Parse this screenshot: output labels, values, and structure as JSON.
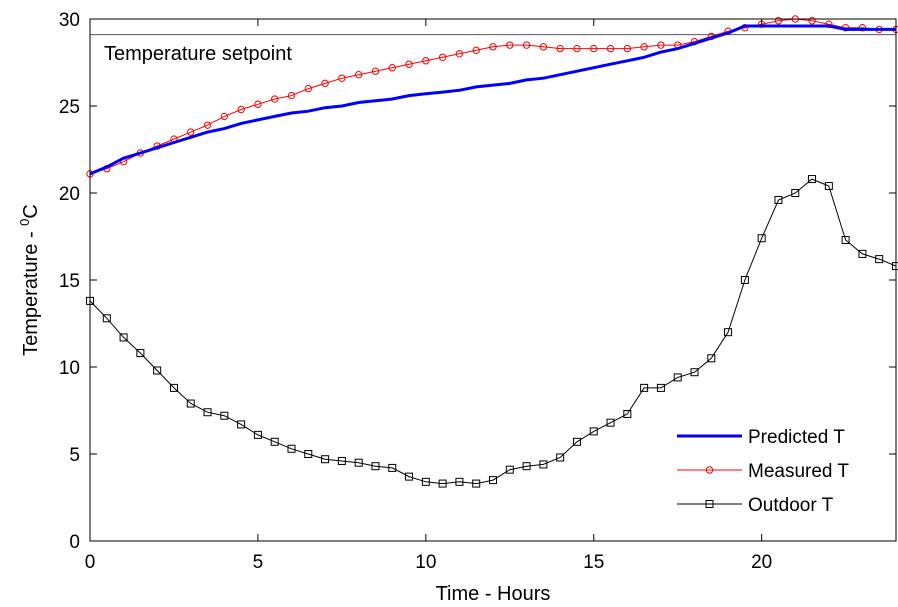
{
  "chart_data": {
    "type": "line",
    "title": "",
    "xlabel": "Time - Hours",
    "ylabel_main": "Temperature - ",
    "ylabel_sup": "0",
    "ylabel_unit": "C",
    "xlim": [
      0,
      24
    ],
    "ylim": [
      0,
      30
    ],
    "xticks": [
      0,
      5,
      10,
      15,
      20
    ],
    "yticks": [
      0,
      5,
      10,
      15,
      20,
      25,
      30
    ],
    "grid": false,
    "legend_position": "bottom-right",
    "setpoint": {
      "label": "Temperature setpoint",
      "value": 29.1,
      "color": "#555555"
    },
    "series": [
      {
        "name": "Predicted T",
        "color": "#0000ff",
        "marker": "none",
        "x": [
          0,
          0.5,
          1,
          1.5,
          2,
          2.5,
          3,
          3.5,
          4,
          4.5,
          5,
          5.5,
          6,
          6.5,
          7,
          7.5,
          8,
          8.5,
          9,
          9.5,
          10,
          10.5,
          11,
          11.5,
          12,
          12.5,
          13,
          13.5,
          14,
          14.5,
          15,
          15.5,
          16,
          16.5,
          17,
          17.5,
          18,
          18.5,
          19,
          19.5,
          20,
          20.5,
          21,
          21.5,
          22,
          22.5,
          23,
          23.5,
          24
        ],
        "y": [
          21.1,
          21.5,
          22.0,
          22.3,
          22.6,
          22.9,
          23.2,
          23.5,
          23.7,
          24.0,
          24.2,
          24.4,
          24.6,
          24.7,
          24.9,
          25.0,
          25.2,
          25.3,
          25.4,
          25.6,
          25.7,
          25.8,
          25.9,
          26.1,
          26.2,
          26.3,
          26.5,
          26.6,
          26.8,
          27.0,
          27.2,
          27.4,
          27.6,
          27.8,
          28.1,
          28.3,
          28.6,
          28.9,
          29.2,
          29.6,
          29.6,
          29.6,
          29.6,
          29.6,
          29.6,
          29.4,
          29.4,
          29.4,
          29.4
        ]
      },
      {
        "name": "Measured T",
        "color": "#ff0000",
        "marker": "circle",
        "x": [
          0,
          0.5,
          1,
          1.5,
          2,
          2.5,
          3,
          3.5,
          4,
          4.5,
          5,
          5.5,
          6,
          6.5,
          7,
          7.5,
          8,
          8.5,
          9,
          9.5,
          10,
          10.5,
          11,
          11.5,
          12,
          12.5,
          13,
          13.5,
          14,
          14.5,
          15,
          15.5,
          16,
          16.5,
          17,
          17.5,
          18,
          18.5,
          19,
          19.5,
          20,
          20.5,
          21,
          21.5,
          22,
          22.5,
          23,
          23.5,
          24
        ],
        "y": [
          21.1,
          21.4,
          21.8,
          22.3,
          22.7,
          23.1,
          23.5,
          23.9,
          24.4,
          24.8,
          25.1,
          25.4,
          25.6,
          26.0,
          26.3,
          26.6,
          26.8,
          27.0,
          27.2,
          27.4,
          27.6,
          27.8,
          28.0,
          28.2,
          28.4,
          28.5,
          28.5,
          28.4,
          28.3,
          28.3,
          28.3,
          28.3,
          28.3,
          28.4,
          28.5,
          28.5,
          28.7,
          29.0,
          29.3,
          29.5,
          29.7,
          29.9,
          30.0,
          29.9,
          29.7,
          29.5,
          29.5,
          29.4,
          29.4
        ]
      },
      {
        "name": "Outdoor T",
        "color": "#000000",
        "marker": "square",
        "x": [
          0,
          0.5,
          1,
          1.5,
          2,
          2.5,
          3,
          3.5,
          4,
          4.5,
          5,
          5.5,
          6,
          6.5,
          7,
          7.5,
          8,
          8.5,
          9,
          9.5,
          10,
          10.5,
          11,
          11.5,
          12,
          12.5,
          13,
          13.5,
          14,
          14.5,
          15,
          15.5,
          16,
          16.5,
          17,
          17.5,
          18,
          18.5,
          19,
          19.5,
          20,
          20.5,
          21,
          21.5,
          22,
          22.5,
          23,
          23.5,
          24
        ],
        "y": [
          13.8,
          12.8,
          11.7,
          10.8,
          9.8,
          8.8,
          7.9,
          7.4,
          7.2,
          6.7,
          6.1,
          5.7,
          5.3,
          5.0,
          4.7,
          4.6,
          4.5,
          4.3,
          4.2,
          3.7,
          3.4,
          3.3,
          3.4,
          3.3,
          3.5,
          4.1,
          4.3,
          4.4,
          4.8,
          5.7,
          6.3,
          6.8,
          7.3,
          8.8,
          8.8,
          9.4,
          9.7,
          10.5,
          12.0,
          15.0,
          17.4,
          19.6,
          20.0,
          20.8,
          20.4,
          17.3,
          16.5,
          16.2,
          15.8
        ]
      }
    ]
  }
}
